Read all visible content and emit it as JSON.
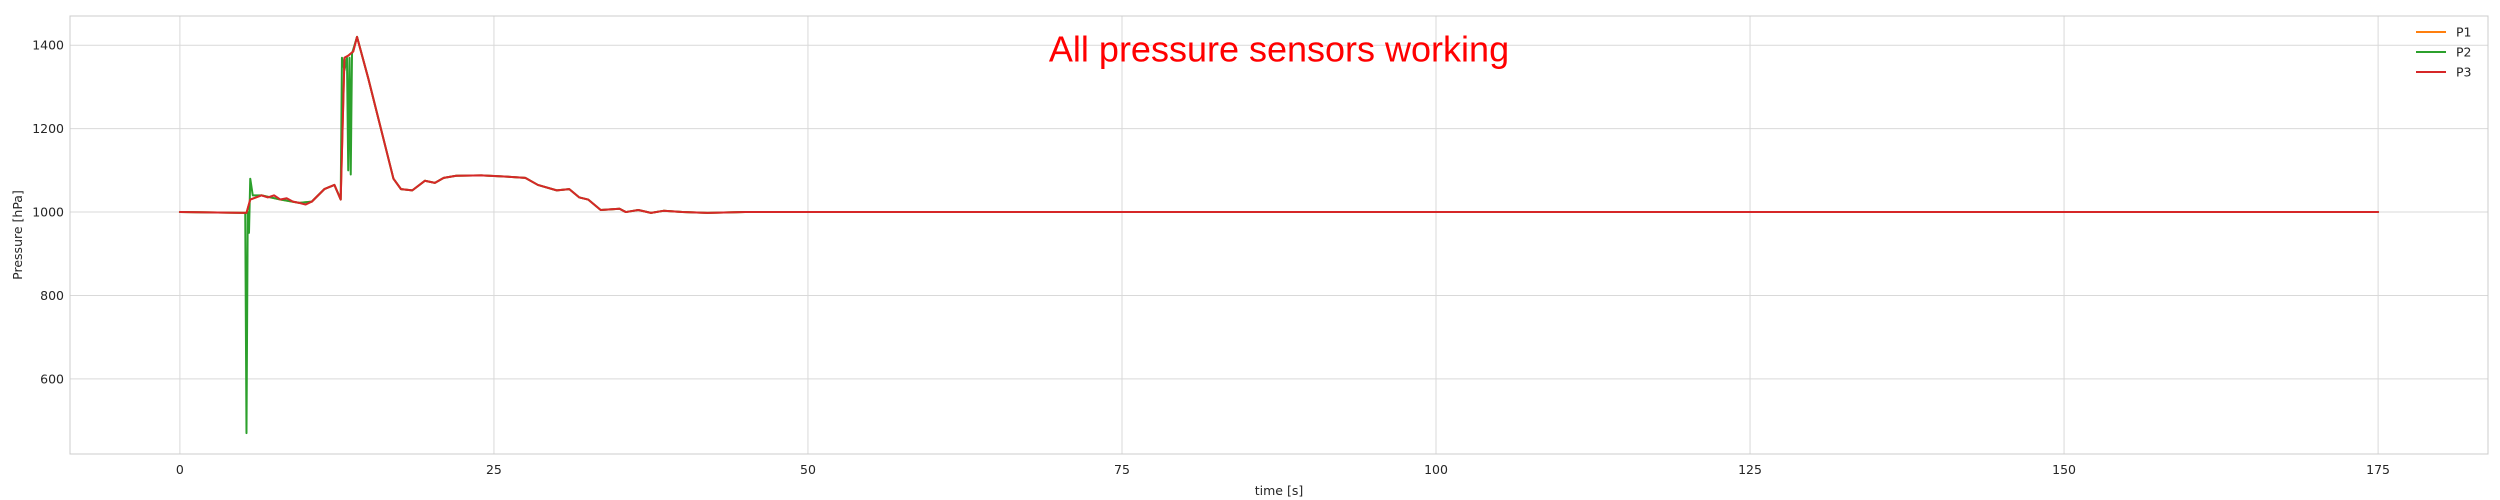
{
  "chart_data": {
    "type": "line",
    "title": "",
    "xlabel": "time [s]",
    "ylabel": "Pressure [hPa]",
    "xlim": [
      -8.75,
      183.75
    ],
    "ylim": [
      420,
      1470
    ],
    "xticks": [
      0,
      25,
      50,
      75,
      100,
      125,
      150,
      175
    ],
    "yticks": [
      600,
      800,
      1000,
      1200,
      1400
    ],
    "grid": true,
    "legend": {
      "placement": "upper right"
    },
    "annotation": {
      "text": "All pressure sensors working",
      "color": "#ff0000",
      "x": 87.5,
      "y": 1390
    },
    "series": [
      {
        "name": "P1",
        "color": "#ff7f0e",
        "x": [
          0,
          5.3,
          5.6,
          6.5,
          8,
          9.5,
          10.5,
          11.5,
          12.3,
          12.8,
          13.1,
          13.4,
          13.8,
          14.1,
          15,
          16,
          17,
          17.6,
          18.5,
          19.5,
          20.3,
          21,
          22,
          24,
          26,
          27.5,
          28.5,
          30,
          31,
          31.8,
          32.5,
          33.5,
          35,
          35.5,
          36.5,
          37.5,
          38.5,
          40,
          42,
          45,
          60,
          175
        ],
        "y": [
          1000,
          998,
          1030,
          1040,
          1030,
          1022,
          1025,
          1055,
          1065,
          1030,
          1370,
          1375,
          1385,
          1420,
          1320,
          1200,
          1080,
          1055,
          1052,
          1075,
          1070,
          1082,
          1087,
          1088,
          1085,
          1082,
          1065,
          1052,
          1055,
          1035,
          1030,
          1005,
          1008,
          1000,
          1005,
          998,
          1003,
          1000,
          998,
          1000,
          1000,
          1000
        ]
      },
      {
        "name": "P2",
        "color": "#2ca02c",
        "x": [
          0,
          5.2,
          5.3,
          5.4,
          5.5,
          5.6,
          5.8,
          6,
          6.5,
          8,
          9.5,
          10.5,
          11.5,
          12.3,
          12.8,
          12.9,
          13.1,
          13.3,
          13.4,
          13.5,
          13.6,
          13.7,
          13.8,
          14.1,
          15,
          16,
          17,
          17.6,
          18.5,
          19.5,
          20.3,
          21,
          22,
          24,
          26,
          27.5,
          28.5,
          30,
          31,
          31.8,
          32.5,
          33.5,
          35,
          35.5,
          36.5,
          37.5,
          38.5,
          40,
          42,
          45,
          60,
          175
        ],
        "y": [
          1000,
          998,
          470,
          1000,
          950,
          1080,
          1040,
          1040,
          1040,
          1030,
          1022,
          1025,
          1055,
          1065,
          1030,
          1370,
          1340,
          1370,
          1100,
          1370,
          1090,
          1380,
          1390,
          1420,
          1320,
          1200,
          1080,
          1055,
          1052,
          1075,
          1070,
          1082,
          1087,
          1088,
          1085,
          1082,
          1065,
          1052,
          1055,
          1035,
          1030,
          1005,
          1008,
          1000,
          1005,
          998,
          1003,
          1000,
          998,
          1000,
          1000,
          1000
        ]
      },
      {
        "name": "P3",
        "color": "#d62728",
        "x": [
          0,
          5.3,
          5.6,
          6.5,
          7,
          7.5,
          8,
          8.5,
          9,
          9.5,
          10,
          10.5,
          11.5,
          12.3,
          12.8,
          13.1,
          13.4,
          13.8,
          14.1,
          15,
          16,
          17,
          17.6,
          18.5,
          19.5,
          20.3,
          21,
          22,
          24,
          26,
          27.5,
          28.5,
          30,
          31,
          31.8,
          32.5,
          33.5,
          35,
          35.5,
          36.5,
          37.5,
          38.5,
          40,
          42,
          45,
          60,
          175
        ],
        "y": [
          1000,
          998,
          1030,
          1040,
          1035,
          1040,
          1030,
          1033,
          1025,
          1022,
          1018,
          1025,
          1055,
          1065,
          1030,
          1370,
          1375,
          1385,
          1420,
          1320,
          1200,
          1080,
          1055,
          1052,
          1075,
          1070,
          1082,
          1087,
          1088,
          1085,
          1082,
          1065,
          1052,
          1055,
          1035,
          1030,
          1005,
          1008,
          1000,
          1005,
          998,
          1003,
          1000,
          998,
          1000,
          1000,
          1000
        ]
      }
    ]
  }
}
